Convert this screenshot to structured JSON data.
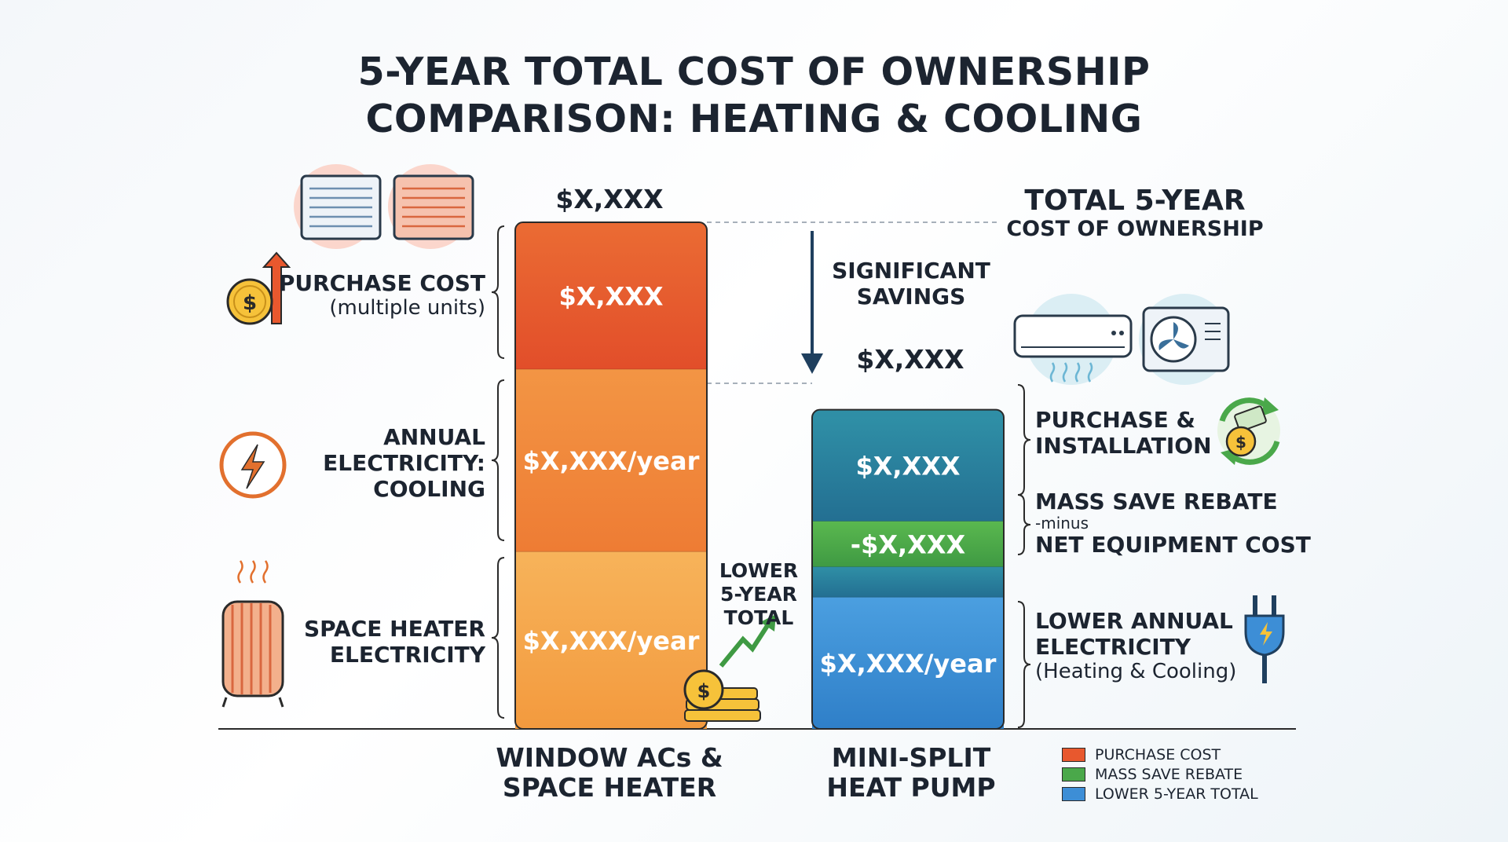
{
  "title_line1": "5-YEAR TOTAL COST OF OWNERSHIP",
  "title_line2": "COMPARISON: HEATING & COOLING",
  "chart_data": {
    "type": "bar",
    "stacked": true,
    "categories": [
      "WINDOW ACs & SPACE HEATER",
      "MINI-SPLIT HEAT PUMP"
    ],
    "category_lines": [
      [
        "WINDOW ACs &",
        "SPACE HEATER"
      ],
      [
        "MINI-SPLIT",
        "HEAT PUMP"
      ]
    ],
    "totals": [
      "$X,XXX",
      "$X,XXX"
    ],
    "left_stack": [
      {
        "label": "$X,XXX/year",
        "relative_height": 0.35,
        "color": "#f5a94d"
      },
      {
        "label": "$X,XXX/year",
        "relative_height": 0.36,
        "color": "#f0883a"
      },
      {
        "label": "$X,XXX",
        "relative_height": 0.29,
        "color": "#e8582e"
      }
    ],
    "right_stack": [
      {
        "label": "$X,XXX/year",
        "relative_height": 0.26,
        "color": "#3d8ed6"
      },
      {
        "label": "",
        "relative_height": 0.06,
        "color": "#2a7f9e"
      },
      {
        "label": "-$X,XXX",
        "relative_height": 0.09,
        "color": "#4aa84a"
      },
      {
        "label": "$X,XXX",
        "relative_height": 0.22,
        "color": "#2a7f9e"
      }
    ],
    "legend": [
      {
        "label": "PURCHASE COST",
        "color": "#e8582e"
      },
      {
        "label": "MASS SAVE REBATE",
        "color": "#4aa84a"
      },
      {
        "label": "LOWER 5-YEAR TOTAL",
        "color": "#3d8ed6"
      }
    ],
    "legend_position": "bottom-right",
    "grid": false
  },
  "left_annotations": {
    "purchase": {
      "title": "PURCHASE COST",
      "sub": "(multiple units)"
    },
    "cooling": {
      "lines": [
        "ANNUAL",
        "ELECTRICITY:",
        "COOLING"
      ]
    },
    "heater": {
      "lines": [
        "SPACE HEATER",
        "ELECTRICITY"
      ]
    }
  },
  "right_annotations": {
    "total_title": "TOTAL 5-YEAR",
    "total_sub": "COST OF OWNERSHIP",
    "savings": [
      "SIGNIFICANT",
      "SAVINGS"
    ],
    "lower_total": [
      "LOWER",
      "5-YEAR",
      "TOTAL"
    ],
    "purchase_install": [
      "PURCHASE &",
      "INSTALLATION"
    ],
    "rebate_title": "MASS SAVE REBATE",
    "rebate_minus": "-minus",
    "rebate_net": "NET EQUIPMENT COST",
    "lower_elec": [
      "LOWER ANNUAL",
      "ELECTRICITY"
    ],
    "lower_elec_sub": "(Heating & Cooling)"
  },
  "icons": {
    "window_ac": "window-ac-icon",
    "dollar_up": "dollar-arrow-up-icon",
    "lightning": "lightning-bolt-icon",
    "heater": "space-heater-icon",
    "coins_growth": "coins-growth-icon",
    "indoor_unit": "mini-split-indoor-unit-icon",
    "outdoor_unit": "outdoor-condenser-icon",
    "recycle_money": "money-recycle-icon",
    "plug": "electric-plug-icon"
  },
  "colors": {
    "purchase_red": "#e8582e",
    "cooling_orange": "#f0883a",
    "heater_orange": "#f5a94d",
    "teal": "#2a7f9e",
    "green": "#4aa84a",
    "blue": "#3d8ed6"
  }
}
